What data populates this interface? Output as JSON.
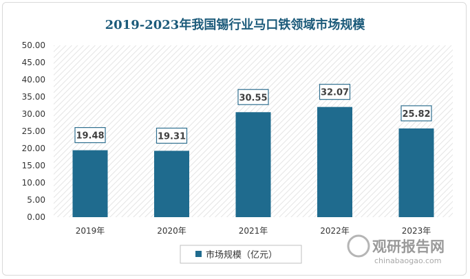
{
  "chart_data": {
    "type": "bar",
    "title": "2019-2023年我国锡行业马口铁领域市场规模",
    "categories": [
      "2019年",
      "2020年",
      "2021年",
      "2022年",
      "2023年"
    ],
    "series": [
      {
        "name": "市场规模（亿元）",
        "values": [
          19.48,
          19.31,
          30.55,
          32.07,
          25.82
        ]
      }
    ],
    "data_labels": [
      "19.48",
      "19.31",
      "30.55",
      "32.07",
      "25.82"
    ],
    "ylim": [
      0,
      50
    ],
    "yticks": [
      "0.00",
      "5.00",
      "10.00",
      "15.00",
      "20.00",
      "25.00",
      "30.00",
      "35.00",
      "40.00",
      "45.00",
      "50.00"
    ],
    "grid": false,
    "legend_position": "bottom",
    "colors": {
      "bar": "#1f6b8e",
      "title": "#1b5a7a",
      "label_border": "#2f6f8f"
    }
  },
  "watermark": {
    "brand": "观研报告网",
    "url": "chinabaogao.com"
  }
}
